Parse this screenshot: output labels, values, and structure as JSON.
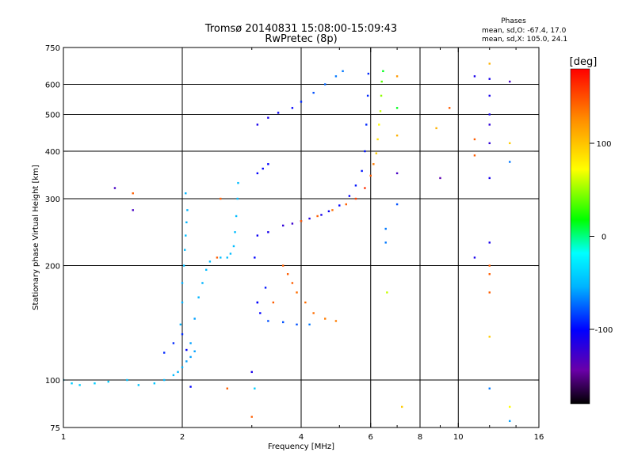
{
  "chart_data": {
    "type": "scatter",
    "title": "Tromsø 20140831 15:08:00-15:09:43",
    "subtitle": "RwPretec (8p)",
    "xlabel": "Frequency [MHz]",
    "ylabel": "Stationary phase Virtual Height [km]",
    "x_scale": "log",
    "y_scale": "log",
    "xlim": [
      1,
      16
    ],
    "ylim": [
      75,
      750
    ],
    "x_ticks": [
      1,
      2,
      4,
      6,
      8,
      10,
      16
    ],
    "y_ticks": [
      75,
      100,
      200,
      300,
      400,
      500,
      600,
      750
    ],
    "grid_x": [
      2,
      4,
      6,
      8,
      10
    ],
    "grid_y": [
      100,
      200,
      300,
      400,
      500,
      600
    ],
    "grid": true,
    "colorbar": {
      "label": "[deg]",
      "ticks": [
        100,
        0,
        -100
      ],
      "range": [
        -180,
        180
      ],
      "colormap": [
        "#000000",
        "#6a00a8",
        "#0000ff",
        "#00b4ff",
        "#00ffff",
        "#00ff00",
        "#ffff00",
        "#ff8c00",
        "#ff0000"
      ]
    },
    "stats": {
      "heading": "Phases",
      "lines": [
        "mean, sd,O: -67.4, 17.0",
        "mean, sd,X: 105.0, 24.1"
      ]
    },
    "series": [
      {
        "values": [
          [
            1.0,
            100,
            -30
          ],
          [
            1.05,
            98,
            -30
          ],
          [
            1.1,
            97,
            -30
          ],
          [
            1.2,
            98,
            -30
          ],
          [
            1.3,
            99,
            -30
          ],
          [
            1.45,
            100,
            -35
          ],
          [
            1.55,
            97,
            -35
          ],
          [
            1.7,
            98,
            -35
          ],
          [
            1.8,
            100,
            -40
          ],
          [
            1.9,
            103,
            -40
          ],
          [
            1.95,
            105,
            -45
          ],
          [
            2.0,
            108,
            -45
          ],
          [
            2.05,
            112,
            -50
          ],
          [
            2.1,
            115,
            -50
          ],
          [
            2.15,
            119,
            -50
          ],
          [
            1.98,
            140,
            -45
          ],
          [
            2.0,
            160,
            -45
          ],
          [
            2.0,
            180,
            -45
          ],
          [
            2.02,
            200,
            -40
          ],
          [
            2.03,
            220,
            -40
          ],
          [
            2.04,
            240,
            -40
          ],
          [
            2.05,
            260,
            -45
          ],
          [
            2.06,
            280,
            -45
          ],
          [
            2.04,
            310,
            -45
          ],
          [
            2.1,
            125,
            -50
          ],
          [
            2.15,
            145,
            -50
          ],
          [
            2.2,
            165,
            -45
          ],
          [
            2.25,
            180,
            -45
          ],
          [
            2.3,
            195,
            -40
          ],
          [
            2.35,
            205,
            -40
          ],
          [
            2.5,
            210,
            -40
          ],
          [
            2.6,
            210,
            -40
          ],
          [
            2.65,
            215,
            -40
          ],
          [
            2.7,
            225,
            -40
          ],
          [
            2.72,
            245,
            -40
          ],
          [
            2.74,
            270,
            -40
          ],
          [
            2.76,
            300,
            -40
          ],
          [
            2.77,
            330,
            -40
          ],
          [
            1.8,
            118,
            -80
          ],
          [
            1.9,
            125,
            -80
          ],
          [
            2.0,
            132,
            -80
          ],
          [
            2.05,
            120,
            -90
          ],
          [
            2.1,
            96,
            -90
          ]
        ]
      },
      {
        "values": [
          [
            3.1,
            160,
            -90
          ],
          [
            3.15,
            150,
            -90
          ],
          [
            3.3,
            143,
            -70
          ],
          [
            3.6,
            142,
            -70
          ],
          [
            3.9,
            140,
            -70
          ],
          [
            4.2,
            140,
            -60
          ],
          [
            3.05,
            210,
            -90
          ],
          [
            3.1,
            240,
            -95
          ],
          [
            3.3,
            245,
            -100
          ],
          [
            3.6,
            255,
            -110
          ],
          [
            3.8,
            258,
            -115
          ],
          [
            4.0,
            262,
            -110
          ],
          [
            4.2,
            266,
            -105
          ],
          [
            4.5,
            272,
            -100
          ],
          [
            4.7,
            278,
            -95
          ],
          [
            5.0,
            288,
            -90
          ],
          [
            5.3,
            305,
            -90
          ],
          [
            5.5,
            325,
            -85
          ],
          [
            5.7,
            355,
            -85
          ],
          [
            5.8,
            400,
            -85
          ],
          [
            5.85,
            470,
            -80
          ],
          [
            5.9,
            560,
            -80
          ],
          [
            5.92,
            640,
            -80
          ],
          [
            3.1,
            350,
            -90
          ],
          [
            3.2,
            360,
            -90
          ],
          [
            3.3,
            370,
            -90
          ],
          [
            3.1,
            470,
            -100
          ],
          [
            3.3,
            490,
            -100
          ],
          [
            3.5,
            505,
            -95
          ],
          [
            3.8,
            520,
            -90
          ],
          [
            4.0,
            540,
            -80
          ],
          [
            4.3,
            570,
            -70
          ],
          [
            4.6,
            600,
            -65
          ],
          [
            4.9,
            630,
            -60
          ],
          [
            5.1,
            650,
            -60
          ],
          [
            3.1,
            160,
            -90
          ],
          [
            3.25,
            175,
            -85
          ]
        ]
      },
      {
        "values": [
          [
            3.6,
            200,
            150
          ],
          [
            3.7,
            190,
            150
          ],
          [
            3.8,
            180,
            150
          ],
          [
            3.9,
            170,
            145
          ],
          [
            4.1,
            160,
            145
          ],
          [
            4.3,
            150,
            145
          ],
          [
            4.6,
            145,
            140
          ],
          [
            4.9,
            143,
            140
          ],
          [
            3.4,
            160,
            150
          ],
          [
            4.0,
            262,
            150
          ],
          [
            4.4,
            270,
            150
          ],
          [
            4.8,
            280,
            145
          ],
          [
            5.2,
            290,
            150
          ],
          [
            5.5,
            300,
            160
          ],
          [
            5.8,
            320,
            165
          ],
          [
            6.0,
            345,
            150
          ],
          [
            6.1,
            370,
            140
          ],
          [
            6.2,
            395,
            110
          ],
          [
            6.25,
            430,
            100
          ],
          [
            6.3,
            470,
            90
          ],
          [
            6.35,
            510,
            80
          ],
          [
            6.38,
            560,
            70
          ],
          [
            6.4,
            610,
            60
          ],
          [
            6.45,
            650,
            40
          ]
        ]
      },
      {
        "values": [
          [
            1.35,
            320,
            -120
          ],
          [
            1.5,
            310,
            150
          ],
          [
            1.5,
            280,
            -120
          ],
          [
            3.0,
            105,
            -100
          ],
          [
            3.05,
            95,
            -30
          ],
          [
            3.0,
            80,
            150
          ],
          [
            6.55,
            250,
            -60
          ],
          [
            6.55,
            230,
            -60
          ],
          [
            6.6,
            170,
            80
          ],
          [
            7.0,
            290,
            -70
          ],
          [
            7.0,
            350,
            -120
          ],
          [
            7.0,
            440,
            120
          ],
          [
            7.0,
            520,
            40
          ],
          [
            7.0,
            630,
            130
          ],
          [
            7.2,
            85,
            110
          ],
          [
            8.8,
            460,
            120
          ],
          [
            9.0,
            340,
            -130
          ],
          [
            9.5,
            520,
            150
          ],
          [
            11.0,
            210,
            -100
          ],
          [
            11.0,
            630,
            -100
          ],
          [
            11.0,
            430,
            150
          ],
          [
            11.0,
            390,
            150
          ],
          [
            12.0,
            680,
            120
          ],
          [
            12.0,
            620,
            -100
          ],
          [
            12.0,
            560,
            -100
          ],
          [
            12.0,
            500,
            -100
          ],
          [
            12.0,
            470,
            -110
          ],
          [
            12.0,
            420,
            -110
          ],
          [
            12.0,
            340,
            -100
          ],
          [
            12.0,
            230,
            -100
          ],
          [
            12.0,
            200,
            150
          ],
          [
            12.0,
            190,
            150
          ],
          [
            12.0,
            170,
            150
          ],
          [
            12.0,
            130,
            110
          ],
          [
            12.0,
            95,
            -60
          ],
          [
            13.5,
            610,
            -120
          ],
          [
            13.5,
            420,
            110
          ],
          [
            13.5,
            375,
            -60
          ],
          [
            13.5,
            85,
            90
          ],
          [
            13.5,
            78,
            -50
          ],
          [
            2.5,
            300,
            150
          ],
          [
            2.45,
            210,
            150
          ],
          [
            2.6,
            95,
            150
          ]
        ]
      }
    ]
  }
}
